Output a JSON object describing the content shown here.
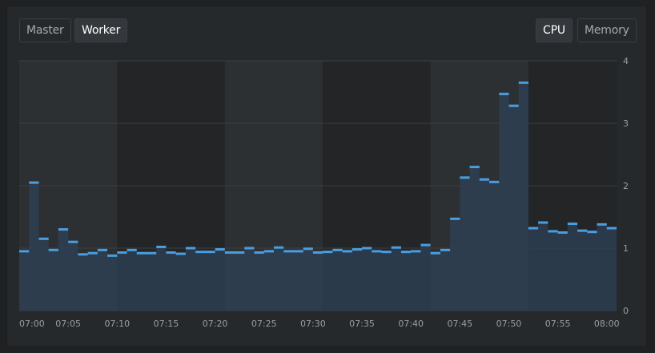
{
  "toggles": {
    "node_type": {
      "options": [
        "Master",
        "Worker"
      ],
      "selected": "Worker"
    },
    "metric": {
      "options": [
        "CPU",
        "Memory"
      ],
      "selected": "CPU"
    }
  },
  "colors": {
    "line": "#4a9ee0",
    "fill": "#2e4257",
    "band_light": "#2d3033",
    "band_dark": "#232527",
    "grid": "#3b3f43"
  },
  "chart_data": {
    "type": "area",
    "title": "",
    "xlabel": "",
    "ylabel": "",
    "x_tick_labels": [
      "07:00",
      "07:05",
      "07:10",
      "07:15",
      "07:20",
      "07:25",
      "07:30",
      "07:35",
      "07:40",
      "07:45",
      "07:50",
      "07:55",
      "08:00"
    ],
    "y_tick_labels": [
      "0",
      "1",
      "2",
      "3",
      "4"
    ],
    "ylim": [
      0,
      4
    ],
    "xlim_minutes": [
      0,
      61
    ],
    "grid": true,
    "series": [
      {
        "values": [
          0.95,
          2.05,
          1.15,
          0.97,
          1.3,
          1.1,
          0.9,
          0.92,
          0.97,
          0.88,
          0.93,
          0.97,
          0.92,
          0.92,
          1.02,
          0.93,
          0.91,
          1.0,
          0.94,
          0.94,
          0.98,
          0.93,
          0.93,
          1.0,
          0.93,
          0.95,
          1.01,
          0.95,
          0.95,
          0.99,
          0.93,
          0.94,
          0.97,
          0.95,
          0.98,
          1.0,
          0.95,
          0.94,
          1.01,
          0.94,
          0.95,
          1.05,
          0.92,
          0.97,
          1.47,
          2.13,
          2.3,
          2.1,
          2.06,
          3.47,
          3.28,
          3.65,
          1.32,
          1.41,
          1.27,
          1.25,
          1.39,
          1.28,
          1.26,
          1.38,
          1.32
        ]
      }
    ]
  }
}
